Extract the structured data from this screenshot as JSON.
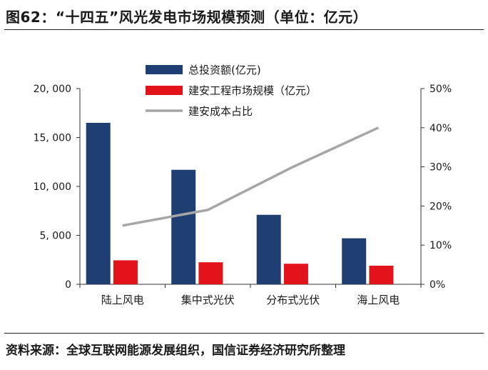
{
  "figure": {
    "title": "图62：“十四五”风光发电市场规模预测（单位：亿元）",
    "source": "资料来源：全球互联网能源发展组织，国信证券经济研究所整理"
  },
  "chart_data": {
    "type": "bar",
    "categories": [
      "陆上风电",
      "集中式光伏",
      "分布式光伏",
      "海上风电"
    ],
    "series": [
      {
        "name": "总投资额(亿元)",
        "type": "bar",
        "axis": "left",
        "color": "#1f3f73",
        "values": [
          16500,
          11700,
          7100,
          4700
        ]
      },
      {
        "name": "建安工程市场规模（亿元）",
        "type": "bar",
        "axis": "left",
        "color": "#e3131b",
        "values": [
          2450,
          2250,
          2100,
          1900
        ]
      },
      {
        "name": "建安成本占比",
        "type": "line",
        "axis": "right",
        "color": "#a6a6a6",
        "values": [
          0.15,
          0.19,
          0.3,
          0.4
        ]
      }
    ],
    "y_left": {
      "min": 0,
      "max": 20000,
      "ticks": [
        0,
        5000,
        10000,
        15000,
        20000
      ],
      "tick_labels": [
        "0",
        "5, 000",
        "10, 000",
        "15, 000",
        "20, 000"
      ]
    },
    "y_right": {
      "min": 0,
      "max": 0.5,
      "ticks": [
        0,
        0.1,
        0.2,
        0.3,
        0.4,
        0.5
      ],
      "tick_labels": [
        "0%",
        "10%",
        "20%",
        "30%",
        "40%",
        "50%"
      ]
    },
    "legend_position": "top-center",
    "grid": false
  }
}
